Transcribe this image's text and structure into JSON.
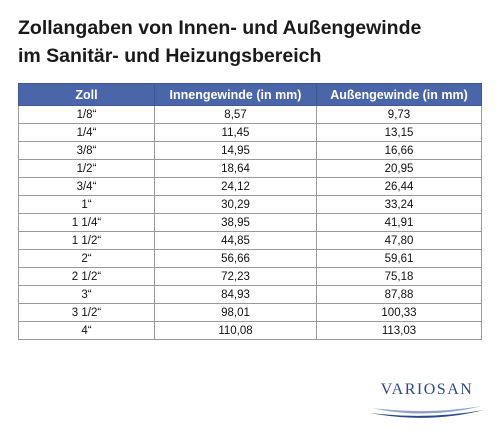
{
  "title": {
    "line1": "Zollangaben von Innen- und Außengewinde",
    "line2": "im Sanitär- und Heizungsbereich"
  },
  "table": {
    "headers": [
      "Zoll",
      "Innengewinde (in mm)",
      "Außengewinde (in mm)"
    ],
    "rows": [
      [
        "1/8“",
        "8,57",
        "9,73"
      ],
      [
        "1/4“",
        "11,45",
        "13,15"
      ],
      [
        "3/8“",
        "14,95",
        "16,66"
      ],
      [
        "1/2“",
        "18,64",
        "20,95"
      ],
      [
        "3/4“",
        "24,12",
        "26,44"
      ],
      [
        "1“",
        "30,29",
        "33,24"
      ],
      [
        "1 1/4“",
        "38,95",
        "41,91"
      ],
      [
        "1 1/2“",
        "44,85",
        "47,80"
      ],
      [
        "2“",
        "56,66",
        "59,61"
      ],
      [
        "2 1/2“",
        "72,23",
        "75,18"
      ],
      [
        "3“",
        "84,93",
        "87,88"
      ],
      [
        "3 1/2“",
        "98,01",
        "100,33"
      ],
      [
        "4“",
        "110,08",
        "113,03"
      ]
    ]
  },
  "logo": {
    "text": "VARIOSAN"
  },
  "colors": {
    "header_bg": "#4a66a8",
    "header_text": "#ffffff",
    "logo_text": "#2c4a8a",
    "swoosh_primary": "#2c4a8a",
    "swoosh_secondary": "#8fa3c8"
  }
}
